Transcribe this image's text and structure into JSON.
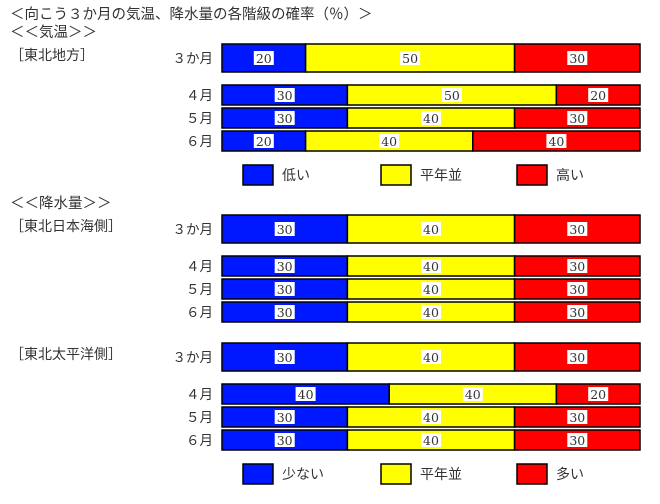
{
  "colors": {
    "low": "#0018ff",
    "normal": "#ffff00",
    "high": "#ff0000",
    "border": "#000000",
    "text": "#333333"
  },
  "chart_data": {
    "type": "bar",
    "title": "＜向こう３か月の気温、降水量の各階級の確率（％）＞",
    "sections": [
      {
        "heading": "＜＜気温＞＞",
        "groups": [
          {
            "region": "［東北地方］",
            "rows": [
              {
                "label": "３か月",
                "values": [
                  20,
                  50,
                  30
                ]
              },
              {
                "label": "４月",
                "values": [
                  30,
                  50,
                  20
                ]
              },
              {
                "label": "５月",
                "values": [
                  30,
                  40,
                  30
                ]
              },
              {
                "label": "６月",
                "values": [
                  20,
                  40,
                  40
                ]
              }
            ]
          }
        ],
        "legend": [
          "低い",
          "平年並",
          "高い"
        ]
      },
      {
        "heading": "＜＜降水量＞＞",
        "groups": [
          {
            "region": "［東北日本海側］",
            "rows": [
              {
                "label": "３か月",
                "values": [
                  30,
                  40,
                  30
                ]
              },
              {
                "label": "４月",
                "values": [
                  30,
                  40,
                  30
                ]
              },
              {
                "label": "５月",
                "values": [
                  30,
                  40,
                  30
                ]
              },
              {
                "label": "６月",
                "values": [
                  30,
                  40,
                  30
                ]
              }
            ]
          },
          {
            "region": "［東北太平洋側］",
            "rows": [
              {
                "label": "３か月",
                "values": [
                  30,
                  40,
                  30
                ]
              },
              {
                "label": "４月",
                "values": [
                  40,
                  40,
                  20
                ]
              },
              {
                "label": "５月",
                "values": [
                  30,
                  40,
                  30
                ]
              },
              {
                "label": "６月",
                "values": [
                  30,
                  40,
                  30
                ]
              }
            ]
          }
        ],
        "legend": [
          "少ない",
          "平年並",
          "多い"
        ]
      }
    ]
  }
}
